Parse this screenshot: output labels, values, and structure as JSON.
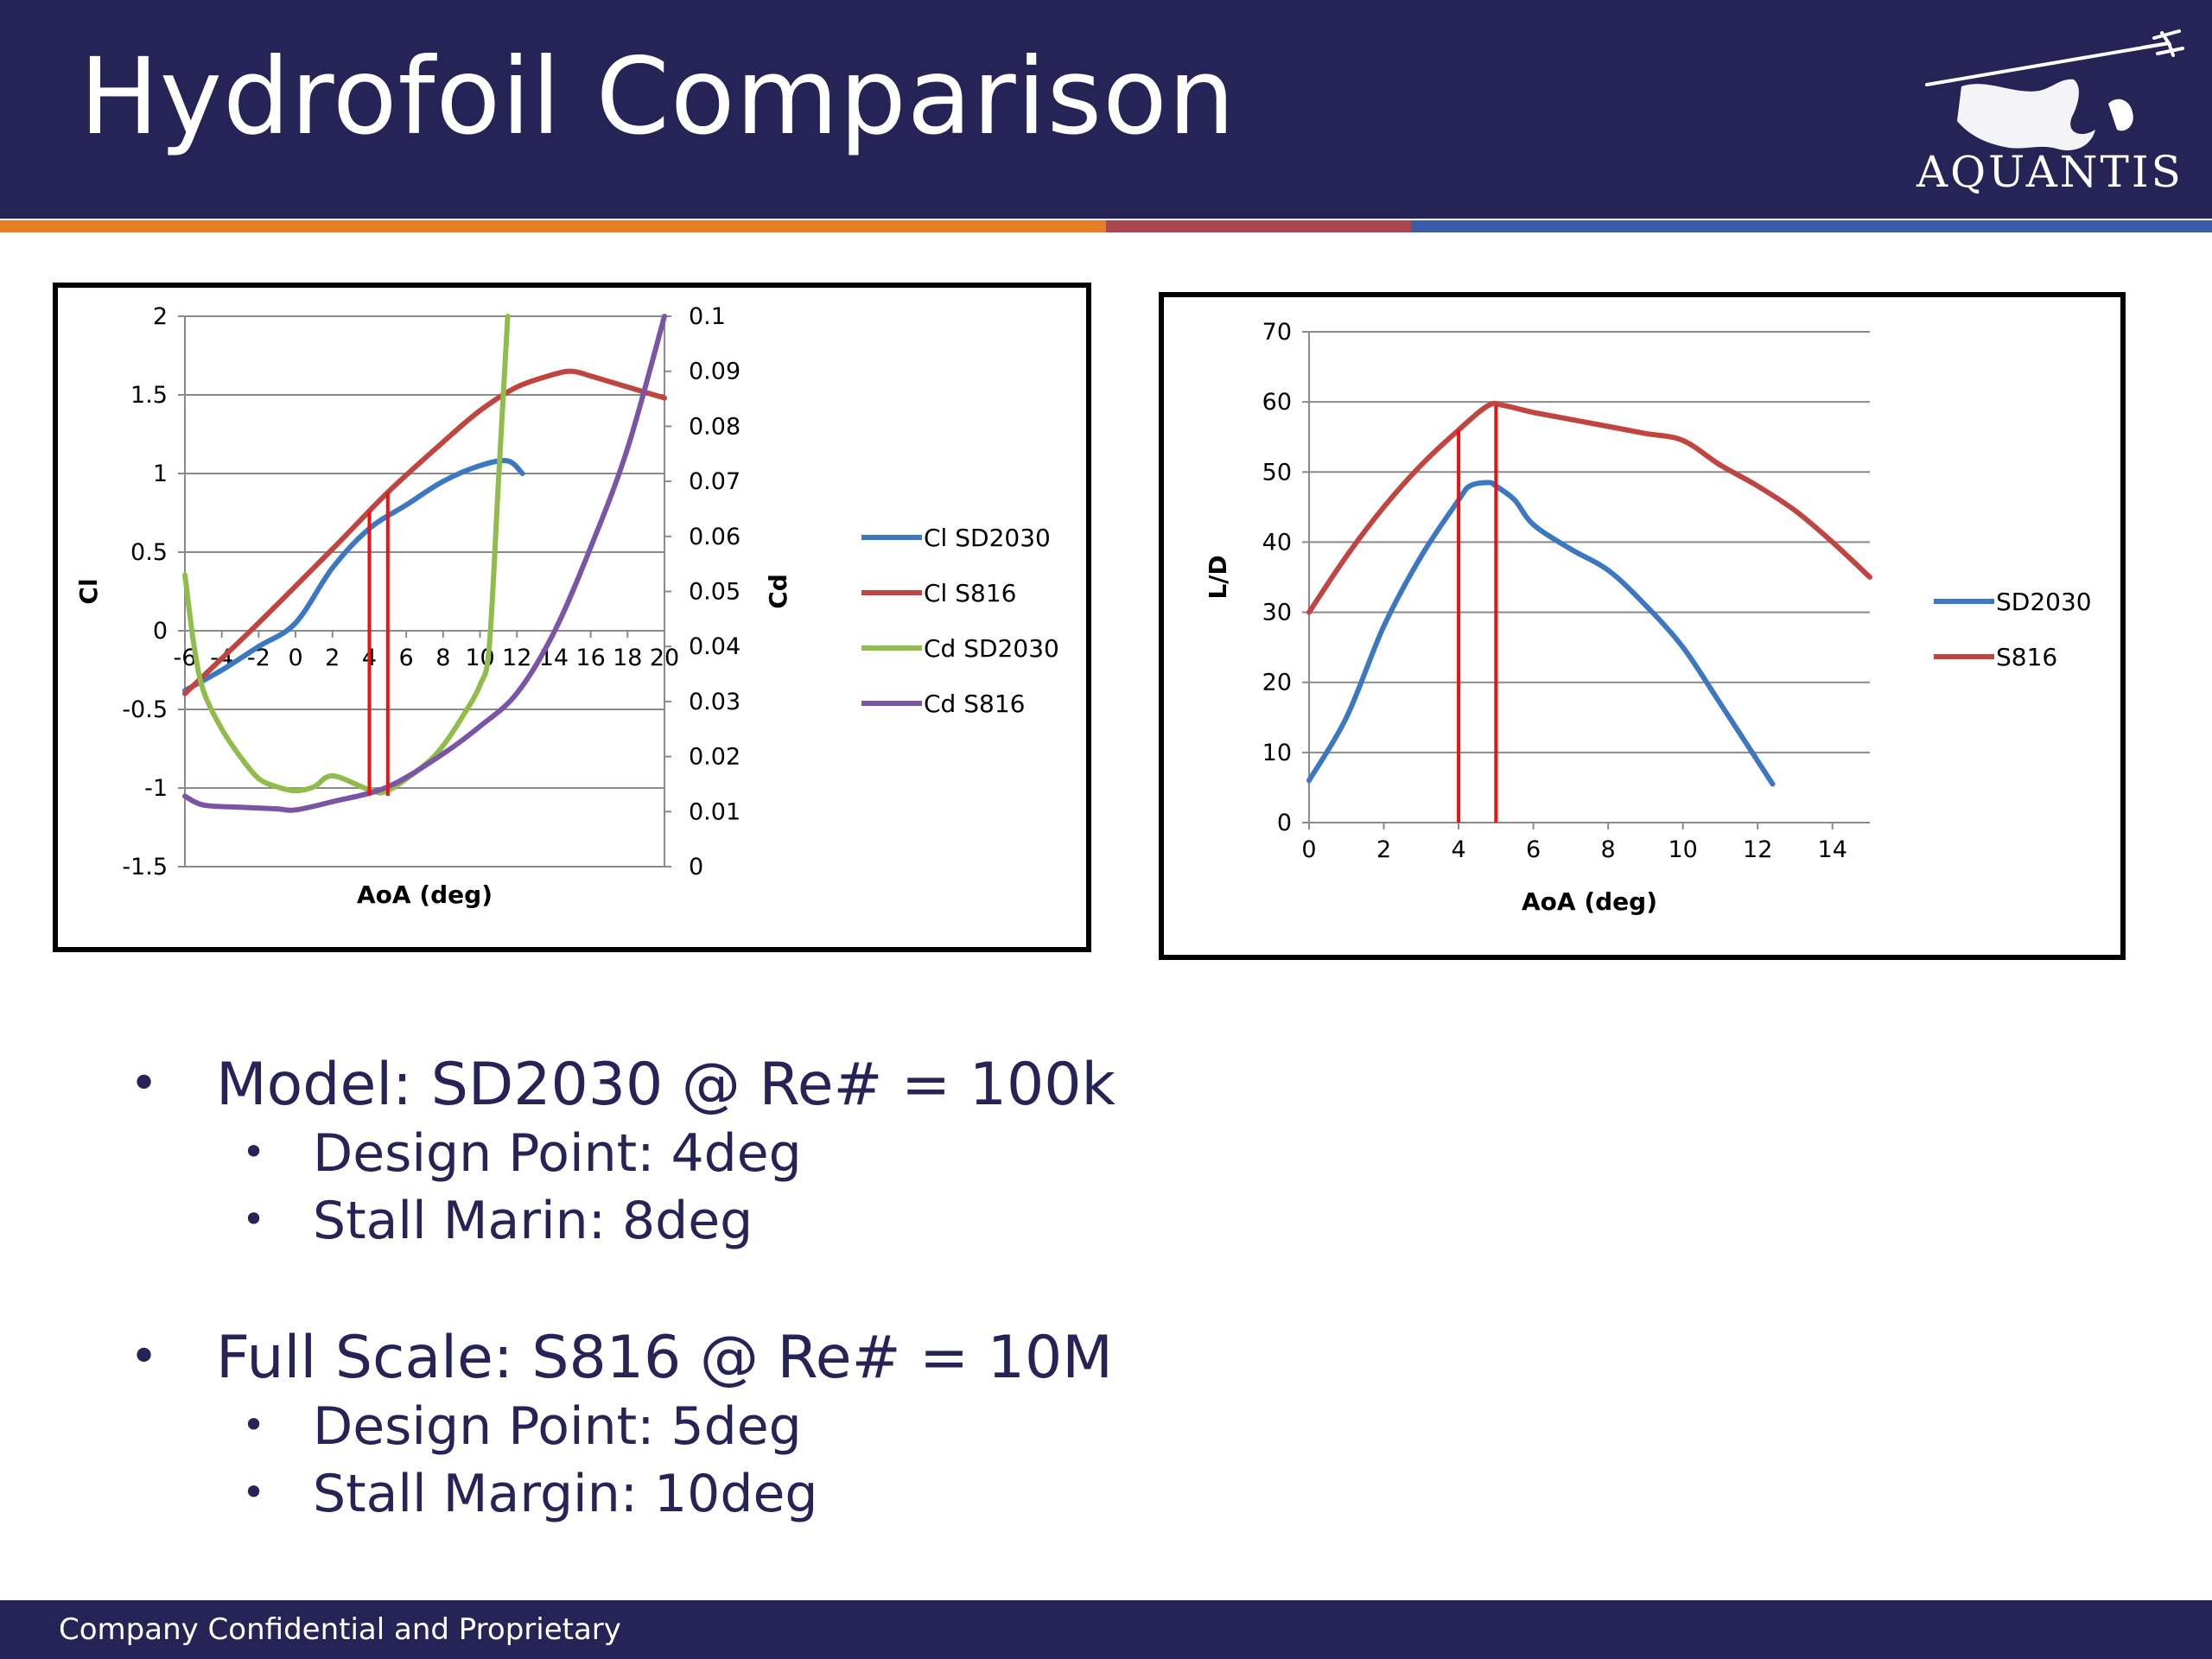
{
  "slide": {
    "title": "Hydrofoil Comparison",
    "logo_text": "AQUANTIS",
    "footer": "Company Confidential and Proprietary",
    "colors": {
      "navy": "#262356",
      "orange": "#e67e22",
      "maroon": "#a94451",
      "blue_stripe": "#3b5ca8",
      "marker": "#ee1111"
    }
  },
  "bullets": [
    {
      "text": "Model: SD2030 @ Re# = 100k",
      "sub": [
        "Design Point: 4deg",
        "Stall Marin: 8deg"
      ]
    },
    {
      "text": "Full Scale: S816 @ Re# = 10M",
      "sub": [
        "Design Point: 5deg",
        "Stall Margin: 10deg"
      ]
    }
  ],
  "chart_data": [
    {
      "type": "line",
      "xlabel": "AoA (deg)",
      "ylabel": "Cl",
      "y2label": "Cd",
      "xlim": [
        -6,
        20
      ],
      "ylim": [
        -1.5,
        2
      ],
      "y2lim": [
        0,
        0.1
      ],
      "xticks": [
        "-6",
        "-4",
        "-2",
        "0",
        "2",
        "4",
        "6",
        "8",
        "10",
        "12",
        "14",
        "16",
        "18",
        "20"
      ],
      "yticks": [
        "-1.5",
        "-1",
        "-0.5",
        "0",
        "0.5",
        "1",
        "1.5",
        "2"
      ],
      "y2ticks": [
        "0",
        "0.01",
        "0.02",
        "0.03",
        "0.04",
        "0.05",
        "0.06",
        "0.07",
        "0.08",
        "0.09",
        "0.1"
      ],
      "grid": true,
      "legend_position": "right",
      "series": [
        {
          "name": "Cl SD2030",
          "axis": "left",
          "color": "#3b78c1",
          "x": [
            -6,
            -4,
            -2,
            0,
            2,
            4,
            6,
            8,
            10,
            11.5,
            12.3
          ],
          "y": [
            -0.38,
            -0.25,
            -0.1,
            0.05,
            0.4,
            0.65,
            0.8,
            0.95,
            1.05,
            1.08,
            1.0
          ]
        },
        {
          "name": "Cl S816",
          "axis": "left",
          "color": "#c0443f",
          "x": [
            -6,
            -2,
            2,
            5,
            8,
            10,
            12,
            14,
            15,
            16,
            18,
            20
          ],
          "y": [
            -0.4,
            0.05,
            0.52,
            0.88,
            1.2,
            1.4,
            1.55,
            1.63,
            1.65,
            1.62,
            1.55,
            1.48
          ]
        },
        {
          "name": "Cd SD2030",
          "axis": "right",
          "color": "#8fbc4a",
          "x": [
            -6,
            -5.5,
            -5,
            -4,
            -3,
            -2,
            -1,
            0,
            1,
            2,
            4,
            5,
            7,
            8,
            9,
            10,
            10.5,
            11,
            11.5
          ],
          "y": [
            0.053,
            0.04,
            0.032,
            0.025,
            0.02,
            0.016,
            0.0145,
            0.0138,
            0.0145,
            0.0165,
            0.014,
            0.0138,
            0.0185,
            0.022,
            0.027,
            0.033,
            0.04,
            0.07,
            0.1
          ]
        },
        {
          "name": "Cd S816",
          "axis": "right",
          "color": "#7a55a5",
          "x": [
            -6,
            -5,
            -3,
            -1,
            0,
            2,
            5,
            8,
            10,
            12,
            14,
            16,
            18,
            20
          ],
          "y": [
            0.0128,
            0.0112,
            0.0108,
            0.0105,
            0.0103,
            0.0118,
            0.0145,
            0.0205,
            0.0255,
            0.0315,
            0.0425,
            0.058,
            0.076,
            0.1
          ]
        }
      ],
      "markers": [
        {
          "x": 4,
          "color": "#ee1111"
        },
        {
          "x": 5,
          "color": "#ee1111"
        }
      ]
    },
    {
      "type": "line",
      "xlabel": "AoA (deg)",
      "ylabel": "L/D",
      "xlim": [
        0,
        15
      ],
      "ylim": [
        0,
        70
      ],
      "xticks": [
        "0",
        "2",
        "4",
        "6",
        "8",
        "10",
        "12",
        "14"
      ],
      "yticks": [
        "0",
        "10",
        "20",
        "30",
        "40",
        "50",
        "60",
        "70"
      ],
      "grid": true,
      "legend_position": "right",
      "series": [
        {
          "name": "SD2030",
          "color": "#3b78c1",
          "x": [
            0,
            1,
            2,
            3,
            4,
            4.3,
            4.8,
            5,
            5.5,
            6,
            7,
            8,
            9,
            10,
            11,
            12.4
          ],
          "y": [
            6,
            15,
            28,
            38,
            46,
            48,
            48.5,
            48,
            46,
            42.5,
            39,
            36,
            31,
            25,
            17,
            5.5
          ]
        },
        {
          "name": "S816",
          "color": "#c0443f",
          "x": [
            0,
            1,
            2,
            3,
            4,
            4.8,
            5.2,
            6,
            7,
            8,
            9,
            10,
            11,
            12,
            13,
            14,
            15
          ],
          "y": [
            30,
            38,
            45,
            51,
            56,
            59.5,
            59.5,
            58.5,
            57.5,
            56.5,
            55.5,
            54.5,
            51,
            48,
            44.5,
            40,
            35
          ]
        }
      ],
      "markers": [
        {
          "x": 4,
          "color": "#ee1111"
        },
        {
          "x": 5,
          "color": "#ee1111"
        }
      ]
    }
  ]
}
